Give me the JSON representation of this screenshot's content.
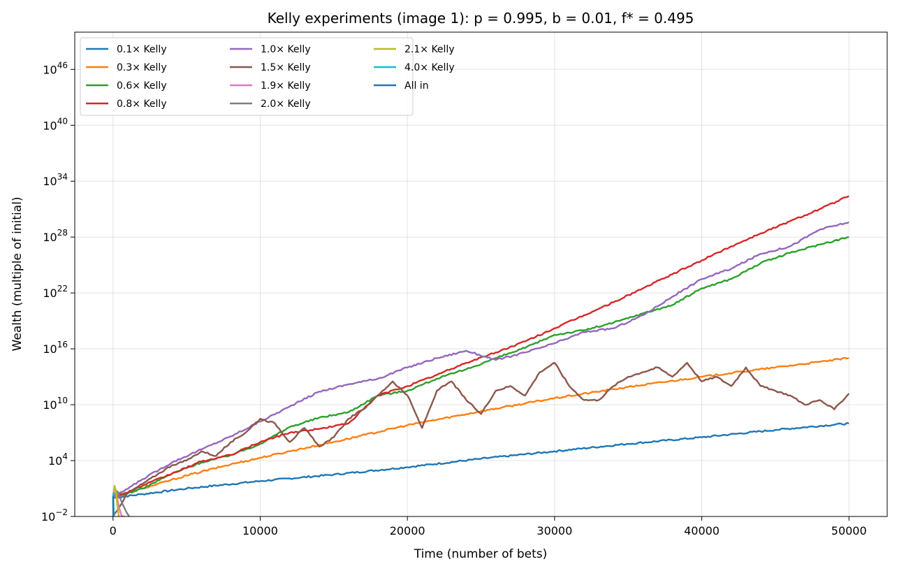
{
  "chart_data": {
    "type": "line",
    "title": "Kelly experiments (image 1): p = 0.995, b = 0.01, f* = 0.495",
    "xlabel": "Time (number of bets)",
    "ylabel": "Wealth (multiple of initial)",
    "x_ticks": [
      0,
      10000,
      20000,
      30000,
      40000,
      50000
    ],
    "x_tick_labels": [
      "0",
      "10000",
      "20000",
      "30000",
      "40000",
      "50000"
    ],
    "y_scale": "log",
    "y_ticks_exponent": [
      -2,
      4,
      10,
      16,
      22,
      28,
      34,
      40,
      46
    ],
    "xlim": [
      -2600,
      52600
    ],
    "ylim_exponent": [
      -2,
      50
    ],
    "grid": true,
    "legend_position": "top-left",
    "legend_columns": 3,
    "series": [
      {
        "name": "0.1× Kelly",
        "color": "#1f77b4",
        "x": [
          0,
          2000,
          5000,
          10000,
          15000,
          20000,
          25000,
          30000,
          35000,
          40000,
          45000,
          50000
        ],
        "log10_y": [
          0.0,
          0.4,
          1.0,
          1.8,
          2.5,
          3.3,
          4.2,
          5.0,
          5.8,
          6.5,
          7.3,
          8.0
        ]
      },
      {
        "name": "0.3× Kelly",
        "color": "#ff7f0e",
        "x": [
          0,
          2000,
          5000,
          8000,
          10000,
          12000,
          15000,
          20000,
          25000,
          30000,
          35000,
          40000,
          45000,
          48000,
          50000
        ],
        "log10_y": [
          0.0,
          1.0,
          2.4,
          3.6,
          4.3,
          5.0,
          6.0,
          7.8,
          9.3,
          10.7,
          11.9,
          13.0,
          14.0,
          14.6,
          15.0
        ]
      },
      {
        "name": "0.6× Kelly",
        "color": "#2ca02c",
        "x": [
          0,
          2000,
          4000,
          6000,
          8000,
          10000,
          12000,
          14000,
          16000,
          18000,
          20000,
          22000,
          24000,
          26000,
          28000,
          30000,
          32000,
          34000,
          36000,
          38000,
          40000,
          42000,
          44000,
          46000,
          48000,
          50000
        ],
        "log10_y": [
          0.0,
          1.0,
          2.6,
          3.8,
          4.6,
          5.8,
          7.6,
          8.6,
          9.2,
          11.0,
          11.5,
          12.8,
          13.8,
          15.0,
          16.1,
          17.5,
          18.0,
          18.8,
          19.8,
          20.7,
          22.5,
          23.5,
          25.2,
          26.3,
          27.2,
          28.0
        ]
      },
      {
        "name": "0.8× Kelly",
        "color": "#d62728",
        "x": [
          0,
          2000,
          4000,
          6000,
          8000,
          10000,
          12000,
          14000,
          16000,
          18000,
          20000,
          22000,
          24000,
          26000,
          28000,
          30000,
          32000,
          34000,
          36000,
          38000,
          40000,
          42000,
          44000,
          46000,
          48000,
          50000
        ],
        "log10_y": [
          0.0,
          1.3,
          2.6,
          3.9,
          4.6,
          6.0,
          7.0,
          7.4,
          8.0,
          11.0,
          12.0,
          13.2,
          14.5,
          15.6,
          16.8,
          18.2,
          19.6,
          21.0,
          22.5,
          24.0,
          25.5,
          27.0,
          28.4,
          29.7,
          31.0,
          32.4
        ]
      },
      {
        "name": "1.0× Kelly",
        "color": "#9467bd",
        "x": [
          0,
          2000,
          4000,
          6000,
          8000,
          10000,
          12000,
          14000,
          16000,
          18000,
          20000,
          22000,
          24000,
          26000,
          28000,
          30000,
          32000,
          34000,
          36000,
          38000,
          40000,
          42000,
          44000,
          46000,
          48000,
          50000
        ],
        "log10_y": [
          0.0,
          2.0,
          3.8,
          5.2,
          6.6,
          8.2,
          9.8,
          11.4,
          12.2,
          12.8,
          14.0,
          15.0,
          15.8,
          14.8,
          15.6,
          16.6,
          17.8,
          18.2,
          19.6,
          21.6,
          23.5,
          24.6,
          26.2,
          27.0,
          28.8,
          29.6
        ]
      },
      {
        "name": "1.5× Kelly",
        "color": "#8c564b",
        "x": [
          0,
          1000,
          2000,
          3000,
          4000,
          5000,
          6000,
          7000,
          8000,
          9000,
          10000,
          11000,
          12000,
          13000,
          14000,
          15000,
          16000,
          17000,
          18000,
          19000,
          20000,
          21000,
          22000,
          23000,
          24000,
          25000,
          26000,
          27000,
          28000,
          29000,
          30000,
          31000,
          32000,
          33000,
          34000,
          35000,
          36000,
          37000,
          38000,
          39000,
          40000,
          41000,
          42000,
          43000,
          44000,
          45000,
          46000,
          47000,
          48000,
          49000,
          50000
        ],
        "log10_y": [
          -2.0,
          0.5,
          1.5,
          2.5,
          3.5,
          4.0,
          5.0,
          4.5,
          6.0,
          7.0,
          8.5,
          8.0,
          6.0,
          7.5,
          5.5,
          6.5,
          8.5,
          9.5,
          11.0,
          12.5,
          11.0,
          7.5,
          11.5,
          12.5,
          10.5,
          9.0,
          11.5,
          12.0,
          11.0,
          13.5,
          14.5,
          12.0,
          10.5,
          10.5,
          12.0,
          13.0,
          13.5,
          14.0,
          13.0,
          14.5,
          12.5,
          13.0,
          12.0,
          14.0,
          12.0,
          11.5,
          11.0,
          10.0,
          10.5,
          9.5,
          11.2
        ]
      },
      {
        "name": "1.9× Kelly",
        "color": "#e377c2",
        "x": [
          0,
          200,
          400,
          600,
          800
        ],
        "log10_y": [
          0.2,
          0.8,
          -1.0,
          -2.0,
          -2.0
        ]
      },
      {
        "name": "2.0× Kelly",
        "color": "#7f7f7f",
        "x": [
          0,
          300,
          600,
          900,
          1100
        ],
        "log10_y": [
          0.0,
          0.7,
          -0.5,
          -1.5,
          -2.0
        ]
      },
      {
        "name": "2.1× Kelly",
        "color": "#bcbd22",
        "x": [
          0,
          100,
          200,
          300,
          400
        ],
        "log10_y": [
          0.0,
          1.3,
          0.8,
          -1.0,
          -2.0
        ]
      },
      {
        "name": "4.0× Kelly",
        "color": "#17becf",
        "x": [
          0,
          20,
          40,
          60
        ],
        "log10_y": [
          0.0,
          0.5,
          -1.0,
          -2.0
        ]
      },
      {
        "name": "All in",
        "color": "#1f77b4",
        "x": [
          0,
          5,
          10,
          15
        ],
        "log10_y": [
          0.0,
          0.1,
          -1.0,
          -2.0
        ]
      }
    ]
  }
}
